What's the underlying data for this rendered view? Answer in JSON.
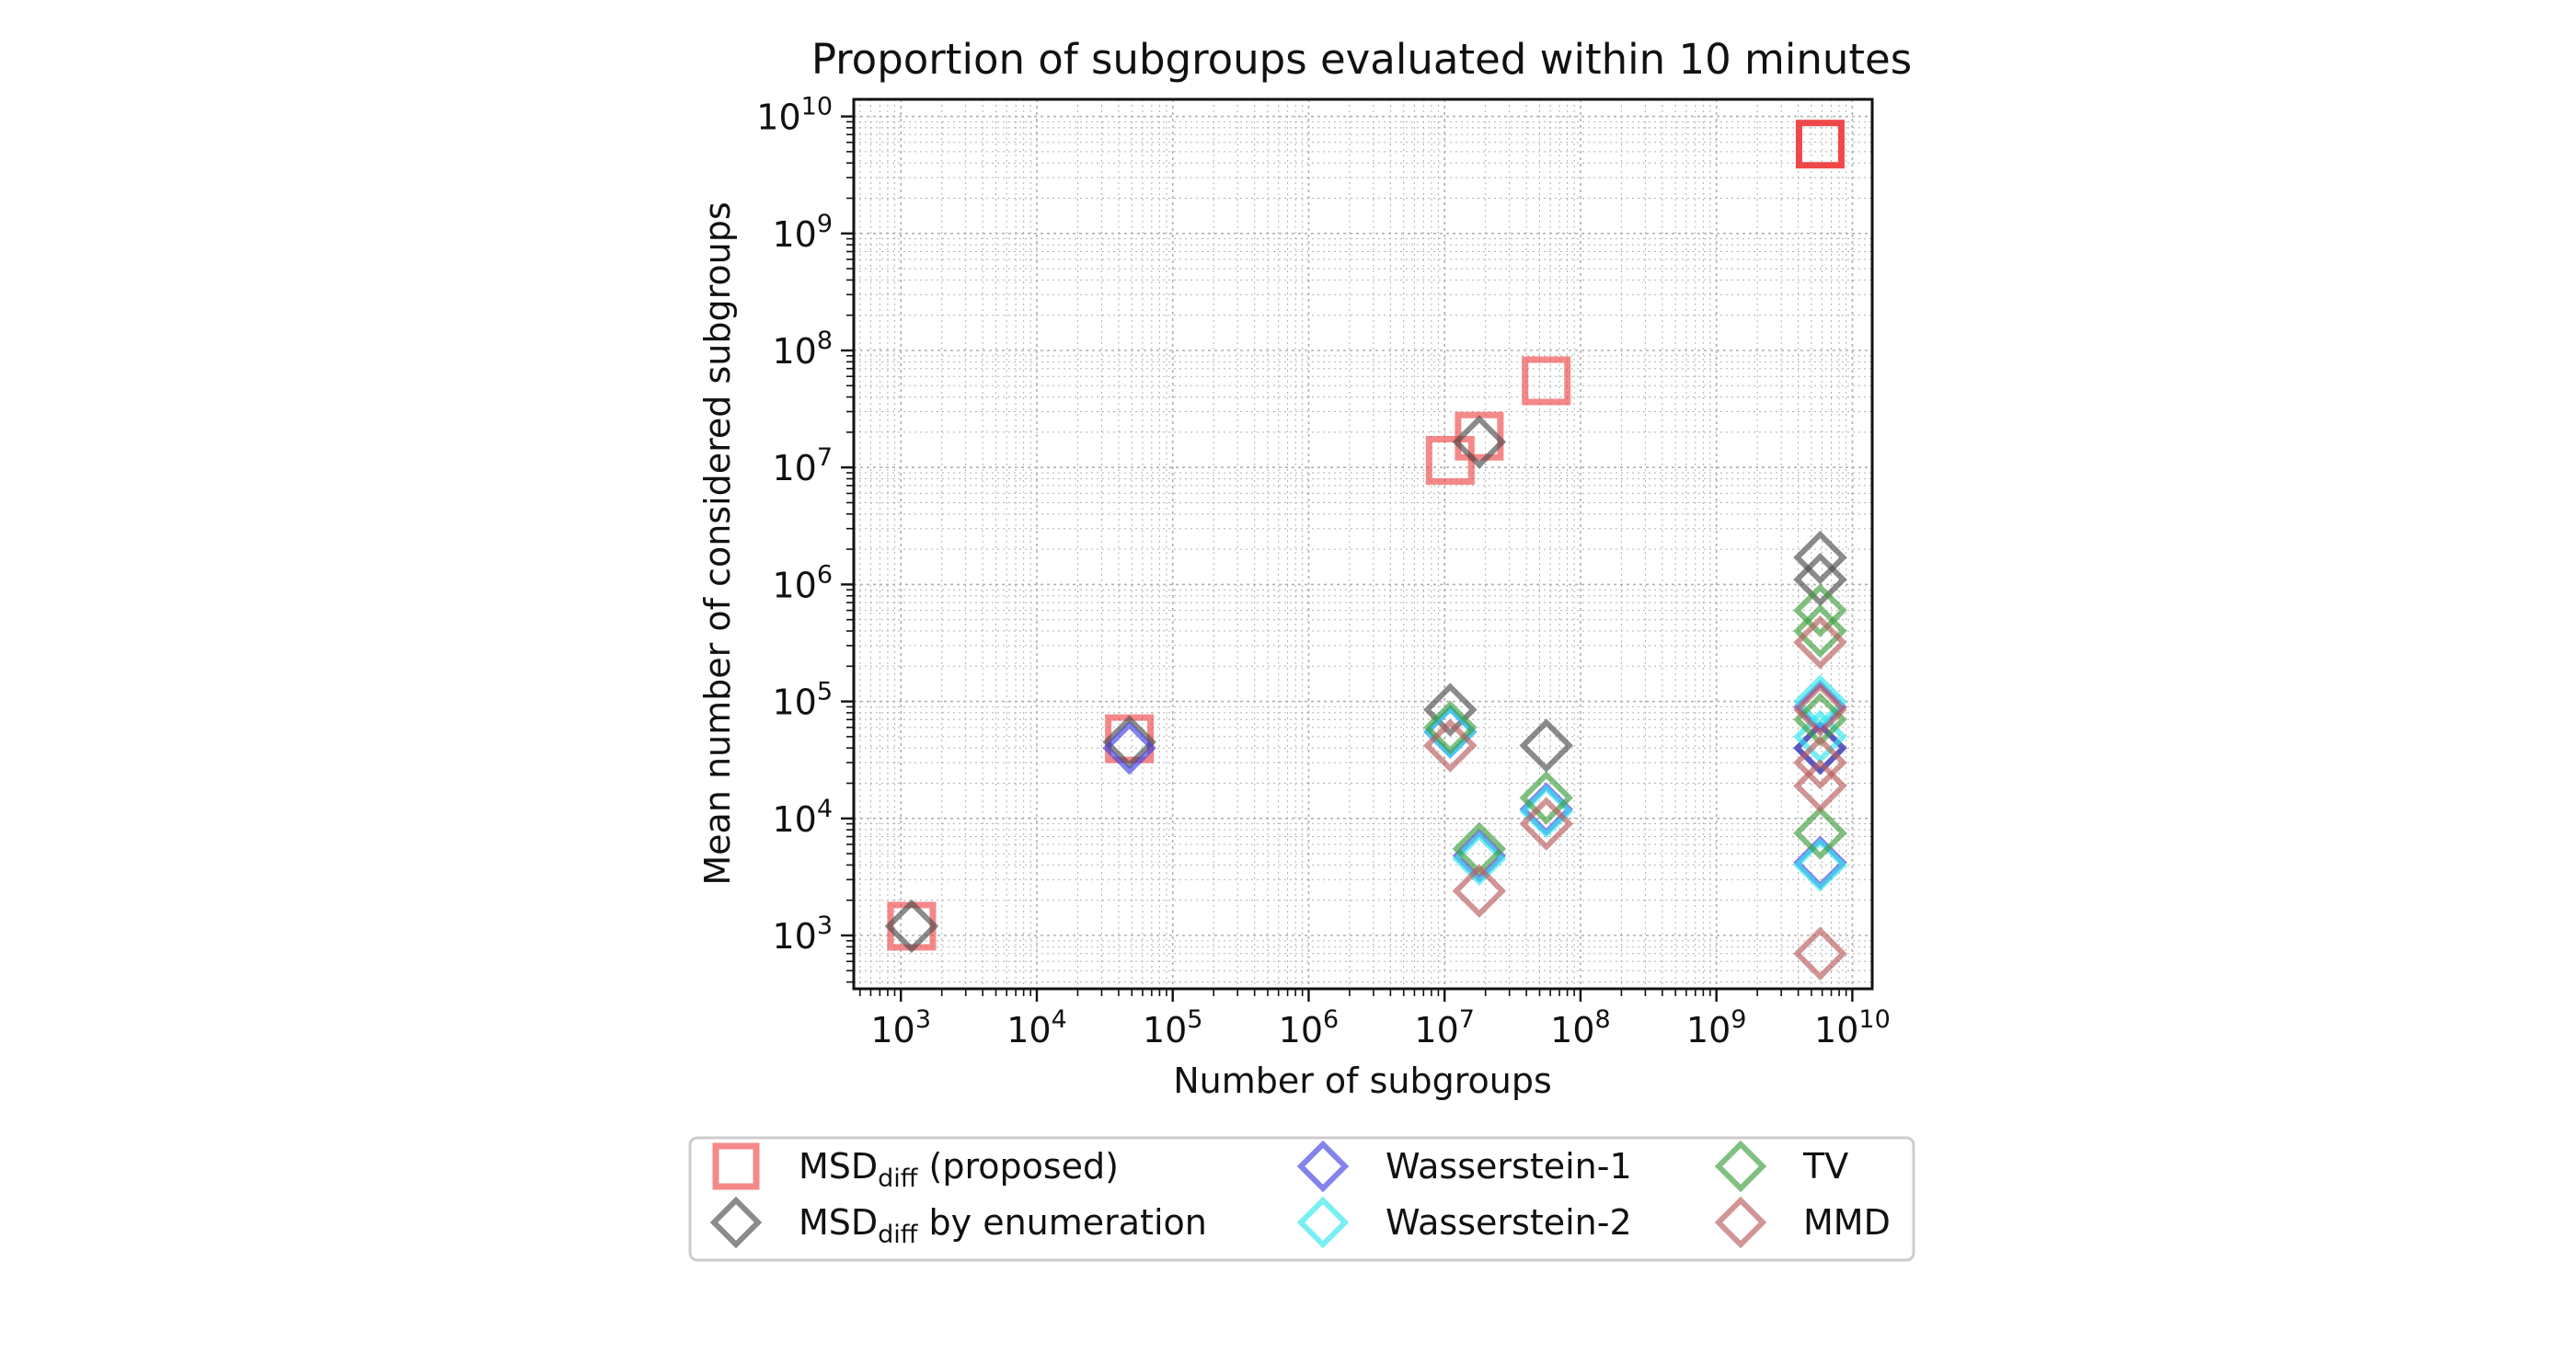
{
  "chart_data": {
    "type": "scatter",
    "title": "Proportion of subgroups evaluated within 10 minutes",
    "xlabel": "Number of subgroups",
    "ylabel": "Mean number of considered subgroups",
    "xscale": "log",
    "yscale": "log",
    "xlim": [
      450,
      14000000000
    ],
    "ylim": [
      350,
      14000000000
    ],
    "grid": true,
    "legend_position": "below",
    "x_ticks": [
      {
        "base": "10",
        "exp": "3"
      },
      {
        "base": "10",
        "exp": "4"
      },
      {
        "base": "10",
        "exp": "5"
      },
      {
        "base": "10",
        "exp": "6"
      },
      {
        "base": "10",
        "exp": "7"
      },
      {
        "base": "10",
        "exp": "8"
      },
      {
        "base": "10",
        "exp": "9"
      },
      {
        "base": "10",
        "exp": "10"
      }
    ],
    "y_ticks": [
      {
        "base": "10",
        "exp": "3"
      },
      {
        "base": "10",
        "exp": "4"
      },
      {
        "base": "10",
        "exp": "5"
      },
      {
        "base": "10",
        "exp": "6"
      },
      {
        "base": "10",
        "exp": "7"
      },
      {
        "base": "10",
        "exp": "8"
      },
      {
        "base": "10",
        "exp": "9"
      },
      {
        "base": "10",
        "exp": "10"
      }
    ],
    "legend": [
      {
        "main": "MSD",
        "sub": "diff",
        "rest": " (proposed)"
      },
      {
        "main": "MSD",
        "sub": "diff",
        "rest": " by enumeration"
      },
      {
        "main": "Wasserstein-1",
        "sub": "",
        "rest": ""
      },
      {
        "main": "Wasserstein-2",
        "sub": "",
        "rest": ""
      },
      {
        "main": "TV",
        "sub": "",
        "rest": ""
      },
      {
        "main": "MMD",
        "sub": "",
        "rest": ""
      }
    ],
    "series": [
      {
        "marker": "square",
        "color": "#f0484a",
        "points": [
          {
            "x": 1200,
            "y": 1200
          },
          {
            "x": 48000,
            "y": 48000
          },
          {
            "x": 11000000,
            "y": 11500000
          },
          {
            "x": 18000000,
            "y": 18500000
          },
          {
            "x": 56000000,
            "y": 55000000
          },
          {
            "x": 5800000000,
            "y": 5800000000,
            "full": true
          }
        ]
      },
      {
        "marker": "diamond",
        "color": "#4d4d4d",
        "points": [
          {
            "x": 1200,
            "y": 1200
          },
          {
            "x": 48000,
            "y": 45000
          },
          {
            "x": 11000000,
            "y": 85000
          },
          {
            "x": 18000000,
            "y": 16500000
          },
          {
            "x": 56000000,
            "y": 42000
          },
          {
            "x": 5800000000,
            "y": 1700000
          },
          {
            "x": 5800000000,
            "y": 1100000
          },
          {
            "x": 5800000000,
            "y": 40000
          }
        ]
      },
      {
        "marker": "diamond",
        "color": "#4040e0",
        "points": [
          {
            "x": 48000,
            "y": 40000
          },
          {
            "x": 11000000,
            "y": 55000
          },
          {
            "x": 18000000,
            "y": 4800
          },
          {
            "x": 56000000,
            "y": 12000
          },
          {
            "x": 5800000000,
            "y": 90000
          },
          {
            "x": 5800000000,
            "y": 40000
          },
          {
            "x": 5800000000,
            "y": 4200
          }
        ]
      },
      {
        "marker": "diamond",
        "color": "#30e6ec",
        "points": [
          {
            "x": 11000000,
            "y": 55000
          },
          {
            "x": 18000000,
            "y": 4500
          },
          {
            "x": 56000000,
            "y": 11500
          },
          {
            "x": 5800000000,
            "y": 100000
          },
          {
            "x": 5800000000,
            "y": 50000
          },
          {
            "x": 5800000000,
            "y": 4000
          }
        ]
      },
      {
        "marker": "diamond",
        "color": "#3d9e3d",
        "points": [
          {
            "x": 11000000,
            "y": 60000
          },
          {
            "x": 18000000,
            "y": 5500
          },
          {
            "x": 56000000,
            "y": 15000
          },
          {
            "x": 5800000000,
            "y": 600000
          },
          {
            "x": 5800000000,
            "y": 400000
          },
          {
            "x": 5800000000,
            "y": 70000
          },
          {
            "x": 5800000000,
            "y": 7500
          }
        ]
      },
      {
        "marker": "diamond",
        "color": "#b85c5c",
        "points": [
          {
            "x": 11000000,
            "y": 42000
          },
          {
            "x": 18000000,
            "y": 2400
          },
          {
            "x": 56000000,
            "y": 9000
          },
          {
            "x": 5800000000,
            "y": 320000
          },
          {
            "x": 5800000000,
            "y": 85000
          },
          {
            "x": 5800000000,
            "y": 30000
          },
          {
            "x": 5800000000,
            "y": 19000
          },
          {
            "x": 5800000000,
            "y": 700
          }
        ]
      }
    ]
  }
}
